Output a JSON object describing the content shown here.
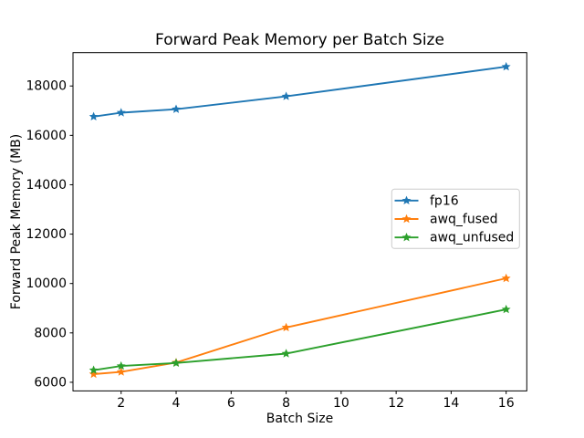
{
  "chart_data": {
    "type": "line",
    "title": "Forward Peak Memory per Batch Size",
    "xlabel": "Batch Size",
    "ylabel": "Forward Peak Memory (MB)",
    "x": [
      1,
      2,
      4,
      8,
      16
    ],
    "series": [
      {
        "name": "fp16",
        "color": "#1f77b4",
        "marker": "star",
        "values": [
          16760,
          16920,
          17060,
          17580,
          18780
        ]
      },
      {
        "name": "awq_fused",
        "color": "#ff7f0e",
        "marker": "star",
        "values": [
          6330,
          6420,
          6800,
          8220,
          10210
        ]
      },
      {
        "name": "awq_unfused",
        "color": "#2ca02c",
        "marker": "star",
        "values": [
          6490,
          6660,
          6780,
          7160,
          8950
        ]
      }
    ],
    "xticks": [
      2,
      4,
      6,
      8,
      10,
      12,
      14,
      16
    ],
    "yticks": [
      6000,
      8000,
      10000,
      12000,
      14000,
      16000,
      18000
    ],
    "xlim": [
      0.25,
      16.75
    ],
    "ylim": [
      5650,
      19350
    ],
    "grid": false,
    "legend_position": "center right",
    "axis_color": "#000000",
    "legend_border_color": "#cccccc",
    "background_color": "#ffffff"
  }
}
